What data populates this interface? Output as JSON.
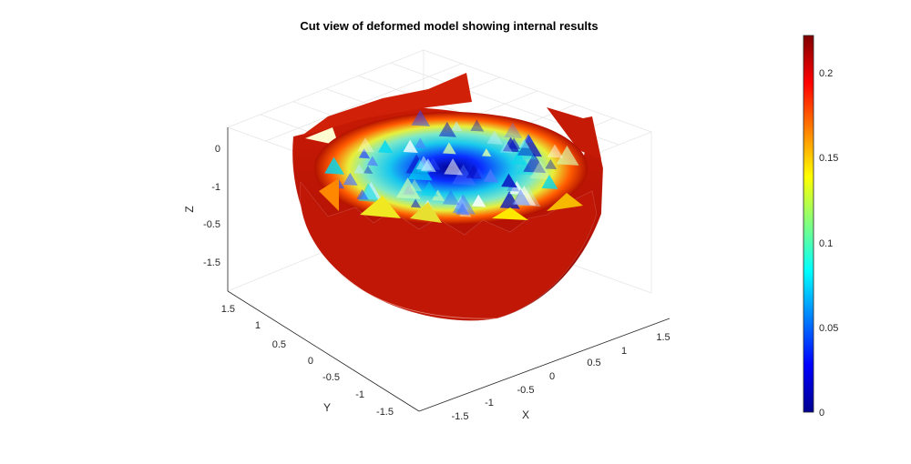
{
  "chart_data": {
    "type": "surface3d",
    "title": "Cut view of deformed model showing internal results",
    "xlabel": "X",
    "ylabel": "Y",
    "zlabel": "Z",
    "xlim": [
      -1.5,
      1.5
    ],
    "ylim": [
      -1.5,
      1.5
    ],
    "zlim": [
      -1.5,
      0
    ],
    "xticks": [
      "-1.5",
      "-1",
      "-0.5",
      "0",
      "0.5",
      "1",
      "1.5"
    ],
    "yticks": [
      "-1.5",
      "-1",
      "-0.5",
      "0",
      "0.5",
      "1",
      "1.5"
    ],
    "zticks": [
      "-1.5",
      "-1",
      "-0.5",
      "0"
    ],
    "colorbar": {
      "range": [
        0,
        0.22
      ],
      "ticks": [
        "0",
        "0.05",
        "0.1",
        "0.15",
        "0.2"
      ],
      "colormap": "jet"
    },
    "grid": true
  }
}
